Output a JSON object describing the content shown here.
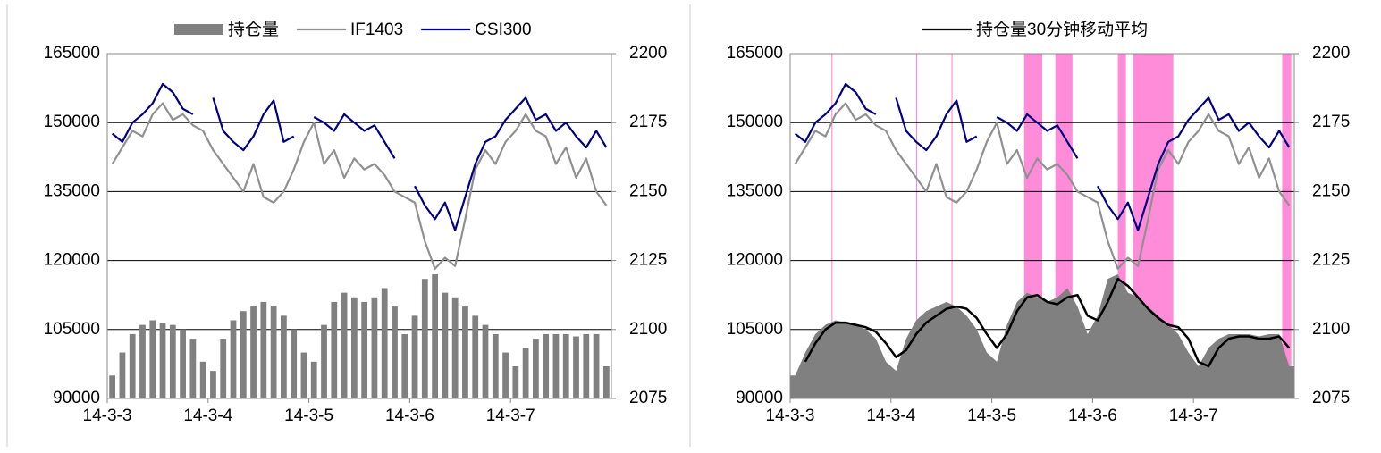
{
  "chart_data": [
    {
      "type": "combo",
      "x": [
        0.05,
        0.15,
        0.25,
        0.35,
        0.45,
        0.55,
        0.65,
        0.75,
        0.85,
        0.95,
        1.05,
        1.15,
        1.25,
        1.35,
        1.45,
        1.55,
        1.65,
        1.75,
        1.85,
        1.95,
        2.05,
        2.15,
        2.25,
        2.35,
        2.45,
        2.55,
        2.65,
        2.75,
        2.85,
        2.95,
        3.05,
        3.15,
        3.25,
        3.35,
        3.45,
        3.55,
        3.65,
        3.75,
        3.85,
        3.95,
        4.05,
        4.15,
        4.25,
        4.35,
        4.45,
        4.55,
        4.65,
        4.75,
        4.85,
        4.95
      ],
      "xlim": [
        0,
        5
      ],
      "xticks": [
        {
          "value": 0,
          "label": "14-3-3"
        },
        {
          "value": 1,
          "label": "14-3-4"
        },
        {
          "value": 2,
          "label": "14-3-5"
        },
        {
          "value": 3,
          "label": "14-3-6"
        },
        {
          "value": 4,
          "label": "14-3-7"
        }
      ],
      "ylim": [
        90000,
        165000
      ],
      "yticks": [
        90000,
        105000,
        120000,
        135000,
        150000,
        165000
      ],
      "y2lim": [
        2075,
        2200
      ],
      "y2ticks": [
        2075,
        2100,
        2125,
        2150,
        2175,
        2200
      ],
      "grid": true,
      "series": [
        {
          "name": "持仓量",
          "color": "#808080",
          "kind": "bar",
          "values": [
            95000,
            100000,
            104000,
            106000,
            107000,
            106500,
            106000,
            105000,
            103000,
            98000,
            96000,
            103000,
            107000,
            109000,
            110000,
            111000,
            110000,
            108000,
            105000,
            100000,
            98000,
            106000,
            111000,
            113000,
            112000,
            111000,
            112000,
            114000,
            110000,
            104000,
            108000,
            116000,
            117000,
            113000,
            112000,
            110000,
            108000,
            106000,
            104000,
            100000,
            97000,
            101000,
            103000,
            104000,
            104000,
            104000,
            103500,
            104000,
            104000,
            97000
          ]
        },
        {
          "name": "IF1403",
          "color": "#909090",
          "kind": "line",
          "axis": "y2",
          "values": [
            2160,
            2166,
            2172,
            2170,
            2178,
            2182,
            2176,
            2178,
            2174,
            2172,
            2165,
            2160,
            2155,
            2150,
            2160,
            2148,
            2146,
            2150,
            2158,
            2168,
            2175,
            2160,
            2165,
            2155,
            2162,
            2158,
            2160,
            2156,
            2150,
            2148,
            2146,
            2132,
            2122,
            2126,
            2123,
            2140,
            2158,
            2165,
            2160,
            2168,
            2172,
            2178,
            2172,
            2170,
            2160,
            2166,
            2155,
            2162,
            2150,
            2145
          ]
        },
        {
          "name": "CSI300",
          "color": "#000080",
          "kind": "line",
          "axis": "y2",
          "values": [
            2171,
            2168,
            2175,
            2178,
            2182,
            2189,
            2186,
            2180,
            2178,
            null,
            2184,
            2172,
            2168,
            2165,
            2170,
            2178,
            2183,
            2168,
            2170,
            null,
            2177,
            2175,
            2172,
            2178,
            2175,
            2172,
            2174,
            2168,
            2162,
            null,
            2152,
            2145,
            2140,
            2146,
            2136,
            2148,
            2160,
            2168,
            2170,
            2176,
            2180,
            2184,
            2176,
            2178,
            2172,
            2175,
            2170,
            2166,
            2172,
            2166
          ]
        }
      ]
    },
    {
      "type": "combo",
      "x": [
        0.05,
        0.15,
        0.25,
        0.35,
        0.45,
        0.55,
        0.65,
        0.75,
        0.85,
        0.95,
        1.05,
        1.15,
        1.25,
        1.35,
        1.45,
        1.55,
        1.65,
        1.75,
        1.85,
        1.95,
        2.05,
        2.15,
        2.25,
        2.35,
        2.45,
        2.55,
        2.65,
        2.75,
        2.85,
        2.95,
        3.05,
        3.15,
        3.25,
        3.35,
        3.45,
        3.55,
        3.65,
        3.75,
        3.85,
        3.95,
        4.05,
        4.15,
        4.25,
        4.35,
        4.45,
        4.55,
        4.65,
        4.75,
        4.85,
        4.95
      ],
      "xlim": [
        0,
        5
      ],
      "xticks": [
        {
          "value": 0,
          "label": "14-3-3"
        },
        {
          "value": 1,
          "label": "14-3-4"
        },
        {
          "value": 2,
          "label": "14-3-5"
        },
        {
          "value": 3,
          "label": "14-3-6"
        },
        {
          "value": 4,
          "label": "14-3-7"
        }
      ],
      "ylim": [
        90000,
        165000
      ],
      "yticks": [
        90000,
        105000,
        120000,
        135000,
        150000,
        165000
      ],
      "y2lim": [
        2075,
        2200
      ],
      "y2ticks": [
        2075,
        2100,
        2125,
        2150,
        2175,
        2200
      ],
      "grid": true,
      "highlight_color": "#ff66cc",
      "highlights": [
        [
          0.41,
          0.42
        ],
        [
          1.25,
          1.26
        ],
        [
          1.6,
          1.61
        ],
        [
          2.32,
          2.5
        ],
        [
          2.63,
          2.8
        ],
        [
          3.25,
          3.33
        ],
        [
          3.4,
          3.8
        ],
        [
          4.88,
          4.97
        ]
      ],
      "series": [
        {
          "color": "#808080",
          "kind": "area",
          "values": [
            95000,
            100000,
            104000,
            106000,
            107000,
            106500,
            106000,
            105000,
            103000,
            98000,
            96000,
            103000,
            107000,
            109000,
            110000,
            111000,
            110000,
            108000,
            105000,
            100000,
            98000,
            106000,
            111000,
            113000,
            112000,
            111000,
            112000,
            114000,
            110000,
            104000,
            108000,
            116000,
            117000,
            113000,
            112000,
            110000,
            108000,
            106000,
            104000,
            100000,
            97000,
            101000,
            103000,
            104000,
            104000,
            104000,
            103500,
            104000,
            104000,
            97000
          ]
        },
        {
          "color": "#909090",
          "kind": "line",
          "axis": "y2",
          "values": [
            2160,
            2166,
            2172,
            2170,
            2178,
            2182,
            2176,
            2178,
            2174,
            2172,
            2165,
            2160,
            2155,
            2150,
            2160,
            2148,
            2146,
            2150,
            2158,
            2168,
            2175,
            2160,
            2165,
            2155,
            2162,
            2158,
            2160,
            2156,
            2150,
            2148,
            2146,
            2132,
            2122,
            2126,
            2123,
            2140,
            2158,
            2165,
            2160,
            2168,
            2172,
            2178,
            2172,
            2170,
            2160,
            2166,
            2155,
            2162,
            2150,
            2145
          ]
        },
        {
          "color": "#000080",
          "kind": "line",
          "axis": "y2",
          "values": [
            2171,
            2168,
            2175,
            2178,
            2182,
            2189,
            2186,
            2180,
            2178,
            null,
            2184,
            2172,
            2168,
            2165,
            2170,
            2178,
            2183,
            2168,
            2170,
            null,
            2177,
            2175,
            2172,
            2178,
            2175,
            2172,
            2174,
            2168,
            2162,
            null,
            2152,
            2145,
            2140,
            2146,
            2136,
            2148,
            2160,
            2168,
            2170,
            2176,
            2180,
            2184,
            2176,
            2178,
            2172,
            2175,
            2170,
            2166,
            2172,
            2166
          ]
        },
        {
          "name": "持仓量30分钟移动平均",
          "color": "#000000",
          "kind": "line",
          "values": [
            null,
            98000,
            102000,
            105000,
            106500,
            106500,
            106000,
            105500,
            104500,
            102000,
            99000,
            100500,
            104000,
            106500,
            108000,
            109500,
            110000,
            109500,
            107500,
            104000,
            101000,
            104000,
            109000,
            112000,
            112500,
            111000,
            110500,
            112000,
            112500,
            108000,
            107000,
            111000,
            116000,
            114500,
            112000,
            109500,
            107500,
            106000,
            105500,
            103000,
            98000,
            97000,
            101000,
            103000,
            103500,
            103500,
            103000,
            103000,
            103500,
            101000
          ]
        }
      ]
    }
  ]
}
